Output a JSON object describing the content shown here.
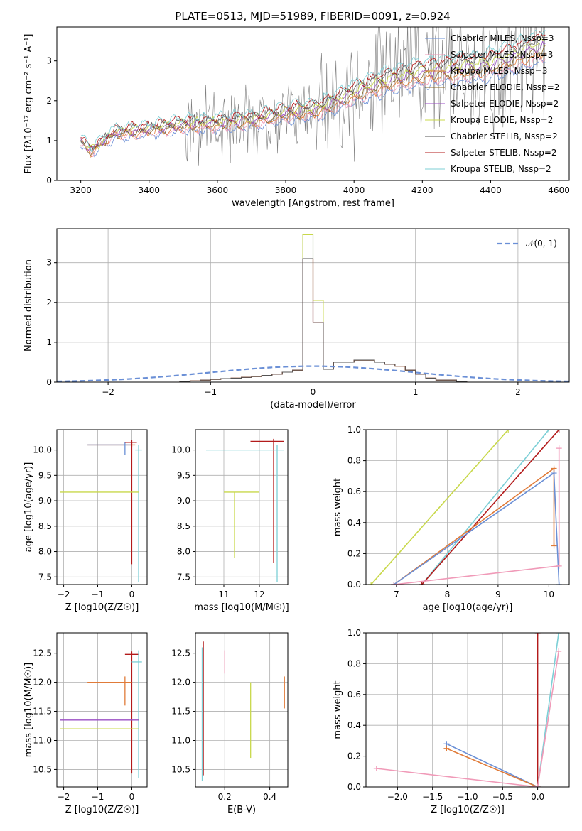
{
  "figure_title": "PLATE=0513, MJD=51989, FIBERID=0091, z=0.924",
  "colors": {
    "chabrier_miles": "#6a8fd6",
    "salpeter_miles": "#f09ab8",
    "kroupa_miles": "#e07b39",
    "chabrier_elodie": "#8a6a2a",
    "salpeter_elodie": "#9b4fc4",
    "kroupa_elodie": "#c8d84a",
    "chabrier_stelib": "#555555",
    "salpeter_stelib": "#b31b1b",
    "kroupa_stelib": "#7ccfd6",
    "data": "#7f7f7f",
    "normal": "#6a8fd6",
    "grid": "#b0b0b0"
  },
  "chart_data": [
    {
      "id": "spectrum",
      "type": "line",
      "xlabel": "wavelength [Angstrom, rest frame]",
      "ylabel": "Flux [f$_\\lambda$10$^{-17}$ erg cm$^{-2}$ s$^{-1}$ A$^{-1}$]",
      "xlim": [
        3130,
        4630
      ],
      "ylim": [
        0,
        3.85
      ],
      "xticks": [
        3200,
        3400,
        3600,
        3800,
        4000,
        4200,
        4400,
        4600
      ],
      "yticks": [
        0,
        1,
        2,
        3
      ],
      "grid": false,
      "legend_position": "upper right",
      "legend": [
        {
          "name": "Chabrier MILES, N$_{SSP}$=3",
          "color_key": "chabrier_miles"
        },
        {
          "name": "Salpeter MILES, N$_{SSP}$=3",
          "color_key": "salpeter_miles"
        },
        {
          "name": "Kroupa MILES, N$_{SSP}$=3",
          "color_key": "kroupa_miles"
        },
        {
          "name": "Chabrier ELODIE, N$_{SSP}$=2",
          "color_key": "chabrier_elodie"
        },
        {
          "name": "Salpeter ELODIE, N$_{SSP}$=2",
          "color_key": "salpeter_elodie"
        },
        {
          "name": "Kroupa ELODIE, N$_{SSP}$=2",
          "color_key": "kroupa_elodie"
        },
        {
          "name": "Chabrier STELIB, N$_{SSP}$=2",
          "color_key": "chabrier_stelib"
        },
        {
          "name": "Salpeter STELIB, N$_{SSP}$=2",
          "color_key": "salpeter_stelib"
        },
        {
          "name": "Kroupa STELIB, N$_{SSP}$=2",
          "color_key": "kroupa_stelib"
        }
      ],
      "continuum_model": [
        [
          3200,
          1.0
        ],
        [
          3230,
          0.75
        ],
        [
          3300,
          1.2
        ],
        [
          3400,
          1.28
        ],
        [
          3500,
          1.4
        ],
        [
          3600,
          1.45
        ],
        [
          3700,
          1.5
        ],
        [
          3800,
          1.7
        ],
        [
          3900,
          1.8
        ],
        [
          4000,
          2.2
        ],
        [
          4100,
          2.5
        ],
        [
          4200,
          2.7
        ],
        [
          4300,
          2.8
        ],
        [
          4400,
          2.9
        ],
        [
          4500,
          3.2
        ],
        [
          4560,
          3.4
        ]
      ],
      "data_noise_start": 3500
    },
    {
      "id": "residuals",
      "type": "line",
      "xlabel": "(data-model)/error",
      "ylabel": "Normed distribution",
      "xlim": [
        -2.5,
        2.5
      ],
      "ylim": [
        0,
        3.85
      ],
      "xticks": [
        -2,
        -1,
        0,
        1,
        2
      ],
      "yticks": [
        0,
        1,
        2,
        3
      ],
      "grid": true,
      "legend_position": "upper right",
      "legend": [
        {
          "name": "$\\mathcal{N}(0,1)$",
          "color_key": "normal"
        }
      ],
      "hist_bin_edges": [
        -2.5,
        -1.3,
        -1.2,
        -1.1,
        -1.0,
        -0.9,
        -0.8,
        -0.7,
        -0.6,
        -0.5,
        -0.4,
        -0.3,
        -0.2,
        -0.1,
        0.0,
        0.1,
        0.2,
        0.4,
        0.6,
        0.7,
        0.8,
        0.9,
        1.0,
        1.1,
        1.2,
        1.4,
        1.5,
        2.5
      ],
      "hist_values": [
        0.0,
        0.02,
        0.03,
        0.05,
        0.07,
        0.09,
        0.1,
        0.12,
        0.14,
        0.17,
        0.2,
        0.25,
        0.3,
        3.1,
        1.5,
        0.32,
        0.5,
        0.55,
        0.5,
        0.45,
        0.4,
        0.3,
        0.2,
        0.1,
        0.05,
        0.02,
        0.0
      ]
    },
    {
      "id": "age_vs_Z",
      "type": "scatter",
      "xlabel": "Z [log$_{10}$(Z/Z$_\\odot$)]",
      "ylabel": "age  [log$_{10}$(age/yr)]",
      "xlim": [
        -2.2,
        0.45
      ],
      "ylim": [
        7.35,
        10.4
      ],
      "xticks": [
        -2,
        -1,
        0
      ],
      "yticks": [
        7.5,
        8.0,
        8.5,
        9.0,
        9.5,
        10.0
      ],
      "grid": true,
      "points": [
        {
          "x": 0.0,
          "y": 10.1,
          "xerr": [
            1.3,
            0.1
          ],
          "yerr": [
            0.05,
            0.05
          ],
          "color_key": "kroupa_miles"
        },
        {
          "x": -0.2,
          "y": 10.1,
          "xerr": [
            1.1,
            0.2
          ],
          "yerr": [
            0.2,
            0.05
          ],
          "color_key": "chabrier_miles"
        },
        {
          "x": 0.0,
          "y": 10.15,
          "xerr": [
            0.2,
            0.15
          ],
          "yerr": [
            2.4,
            0.05
          ],
          "color_key": "salpeter_stelib"
        },
        {
          "x": 0.2,
          "y": 10.0,
          "xerr": [
            0.1,
            0.1
          ],
          "yerr": [
            2.6,
            0.1
          ],
          "color_key": "kroupa_stelib"
        },
        {
          "x": 0.0,
          "y": 9.17,
          "xerr": [
            2.1,
            0.2
          ],
          "yerr": [
            0.0,
            0.0
          ],
          "color_key": "kroupa_elodie"
        }
      ]
    },
    {
      "id": "age_vs_mass",
      "type": "scatter",
      "xlabel": "mass [log$_{10}$(M/M$_\\odot$)]",
      "ylabel": "",
      "xlim": [
        10.2,
        12.8
      ],
      "ylim": [
        7.35,
        10.4
      ],
      "xticks": [
        11,
        12
      ],
      "yticks": [
        7.5,
        8.0,
        8.5,
        9.0,
        9.5,
        10.0
      ],
      "grid": true,
      "points": [
        {
          "x": 12.4,
          "y": 10.17,
          "xerr": [
            0.65,
            0.3
          ],
          "yerr": [
            2.4,
            0.05
          ],
          "color_key": "salpeter_stelib"
        },
        {
          "x": 12.5,
          "y": 10.0,
          "xerr": [
            2.0,
            0.2
          ],
          "yerr": [
            2.6,
            0.1
          ],
          "color_key": "kroupa_stelib"
        },
        {
          "x": 11.3,
          "y": 9.17,
          "xerr": [
            0.3,
            0.7
          ],
          "yerr": [
            1.3,
            0.0
          ],
          "color_key": "kroupa_elodie"
        }
      ]
    },
    {
      "id": "mass_weight_vs_age",
      "type": "line",
      "xlabel": "age  [log$_{10}$(age/yr)]",
      "ylabel": "mass weight",
      "xlim": [
        6.4,
        10.4
      ],
      "ylim": [
        0,
        1
      ],
      "xticks": [
        7,
        8,
        9,
        10
      ],
      "yticks": [
        0.0,
        0.2,
        0.4,
        0.6,
        0.8,
        1.0
      ],
      "grid": true,
      "series": [
        {
          "color_key": "kroupa_elodie",
          "x": [
            6.5,
            9.2
          ],
          "y": [
            0.0,
            1.0
          ]
        },
        {
          "color_key": "kroupa_stelib",
          "x": [
            7.5,
            10.0
          ],
          "y": [
            0.0,
            1.0
          ]
        },
        {
          "color_key": "salpeter_stelib",
          "x": [
            7.5,
            10.2
          ],
          "y": [
            0.0,
            1.0
          ]
        },
        {
          "color_key": "kroupa_miles",
          "x": [
            6.95,
            10.1,
            10.1
          ],
          "y": [
            0.0,
            0.75,
            0.25
          ]
        },
        {
          "color_key": "chabrier_miles",
          "x": [
            6.95,
            10.1,
            10.2
          ],
          "y": [
            0.0,
            0.72,
            0.0
          ]
        },
        {
          "color_key": "salpeter_miles",
          "x": [
            6.95,
            10.2,
            10.2
          ],
          "y": [
            0.0,
            0.12,
            0.88
          ]
        }
      ]
    },
    {
      "id": "mass_vs_Z",
      "type": "scatter",
      "xlabel": "Z [log$_{10}$(Z/Z$_\\odot$)]",
      "ylabel": "mass [log$_{10}$(M/M$_\\odot$)]",
      "xlim": [
        -2.2,
        0.45
      ],
      "ylim": [
        10.2,
        12.85
      ],
      "xticks": [
        -2,
        -1,
        0
      ],
      "yticks": [
        10.5,
        11.0,
        11.5,
        12.0,
        12.5
      ],
      "grid": true,
      "points": [
        {
          "x": 0.0,
          "y": 12.48,
          "xerr": [
            0.2,
            0.2
          ],
          "yerr": [
            2.05,
            0.05
          ],
          "color_key": "salpeter_stelib"
        },
        {
          "x": 0.2,
          "y": 12.35,
          "xerr": [
            0.2,
            0.1
          ],
          "yerr": [
            2.0,
            0.2
          ],
          "color_key": "kroupa_stelib"
        },
        {
          "x": -0.2,
          "y": 12.0,
          "xerr": [
            1.1,
            0.2
          ],
          "yerr": [
            0.4,
            0.1
          ],
          "color_key": "kroupa_miles"
        },
        {
          "x": 0.0,
          "y": 11.35,
          "xerr": [
            2.1,
            0.2
          ],
          "yerr": [
            0.0,
            0.0
          ],
          "color_key": "salpeter_elodie"
        },
        {
          "x": 0.0,
          "y": 11.2,
          "xerr": [
            2.1,
            0.2
          ],
          "yerr": [
            0.0,
            0.0
          ],
          "color_key": "kroupa_elodie"
        }
      ]
    },
    {
      "id": "mass_vs_ebv",
      "type": "scatter",
      "xlabel": "E(B-V)",
      "ylabel": "",
      "xlim": [
        0.07,
        0.48
      ],
      "ylim": [
        10.2,
        12.85
      ],
      "xticks": [
        0.2,
        0.4
      ],
      "yticks": [
        10.5,
        11.0,
        11.5,
        12.0,
        12.5
      ],
      "grid": true,
      "points": [
        {
          "x": 0.105,
          "y": 12.7,
          "xerr": [
            0,
            0
          ],
          "yerr": [
            2.3,
            0.0
          ],
          "color_key": "salpeter_stelib"
        },
        {
          "x": 0.1,
          "y": 12.6,
          "xerr": [
            0,
            0
          ],
          "yerr": [
            2.3,
            0.0
          ],
          "color_key": "kroupa_stelib"
        },
        {
          "x": 0.2,
          "y": 12.55,
          "xerr": [
            0,
            0
          ],
          "yerr": [
            0.4,
            0.0
          ],
          "color_key": "salpeter_miles"
        },
        {
          "x": 0.315,
          "y": 12.0,
          "xerr": [
            0,
            0
          ],
          "yerr": [
            1.3,
            0.0
          ],
          "color_key": "kroupa_elodie"
        },
        {
          "x": 0.465,
          "y": 12.1,
          "xerr": [
            0,
            0
          ],
          "yerr": [
            0.55,
            0.0
          ],
          "color_key": "kroupa_miles"
        }
      ]
    },
    {
      "id": "mass_weight_vs_Z",
      "type": "line",
      "xlabel": "Z [log$_{10}$(Z/Z$_\\odot$)]",
      "ylabel": "mass weight",
      "xlim": [
        -2.45,
        0.45
      ],
      "ylim": [
        0,
        1
      ],
      "xticks": [
        -2.0,
        -1.5,
        -1.0,
        -0.5,
        0.0
      ],
      "yticks": [
        0.0,
        0.2,
        0.4,
        0.6,
        0.8,
        1.0
      ],
      "grid": true,
      "series": [
        {
          "color_key": "salpeter_stelib",
          "x": [
            0.0,
            0.0
          ],
          "y": [
            0.0,
            1.0
          ]
        },
        {
          "color_key": "kroupa_stelib",
          "x": [
            0.0,
            0.3
          ],
          "y": [
            0.0,
            1.0
          ]
        },
        {
          "color_key": "chabrier_miles",
          "x": [
            -1.3,
            0.0
          ],
          "y": [
            0.28,
            0.0
          ]
        },
        {
          "color_key": "kroupa_miles",
          "x": [
            -1.3,
            0.0
          ],
          "y": [
            0.25,
            0.0
          ]
        },
        {
          "color_key": "salpeter_miles",
          "x": [
            -2.3,
            0.0,
            0.3
          ],
          "y": [
            0.12,
            0.0,
            0.88
          ]
        }
      ]
    }
  ]
}
